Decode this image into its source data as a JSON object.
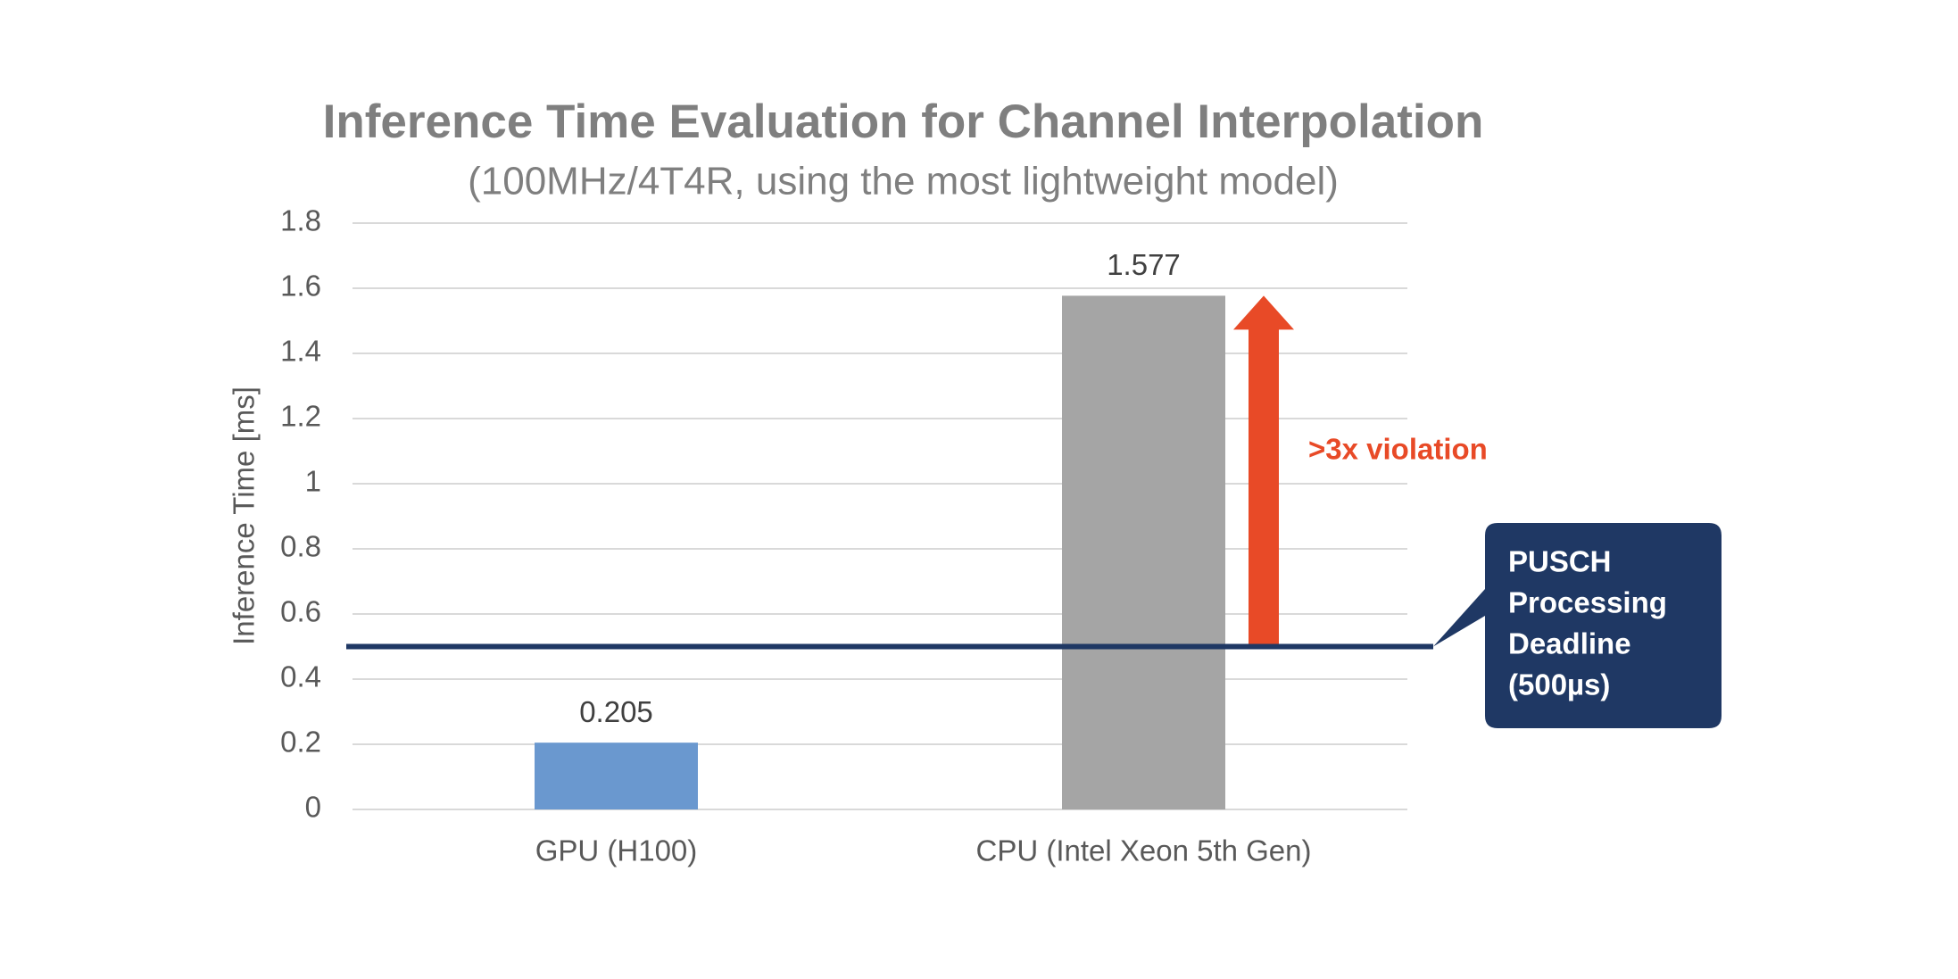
{
  "chart_data": {
    "type": "bar",
    "title": "Inference Time Evaluation for Channel Interpolation",
    "subtitle": "(100MHz/4T4R, using the most lightweight model)",
    "y_label": "Inference Time [ms]",
    "categories": [
      "GPU (H100)",
      "CPU (Intel Xeon 5th Gen)"
    ],
    "values": [
      0.205,
      1.577
    ],
    "colors": [
      "#6a98cf",
      "#a5a5a5"
    ],
    "ylim": [
      0,
      1.8
    ],
    "yticks": [
      0,
      0.2,
      0.4,
      0.6,
      0.8,
      1,
      1.2,
      1.4,
      1.6,
      1.8
    ],
    "grid": true,
    "reference_line": {
      "value": 0.5,
      "color": "#1f3864",
      "label": [
        "PUSCH",
        "Processing",
        "Deadline",
        "(500µs)"
      ]
    },
    "annotation": {
      "text": ">3x violation",
      "color": "#e84a27"
    }
  }
}
